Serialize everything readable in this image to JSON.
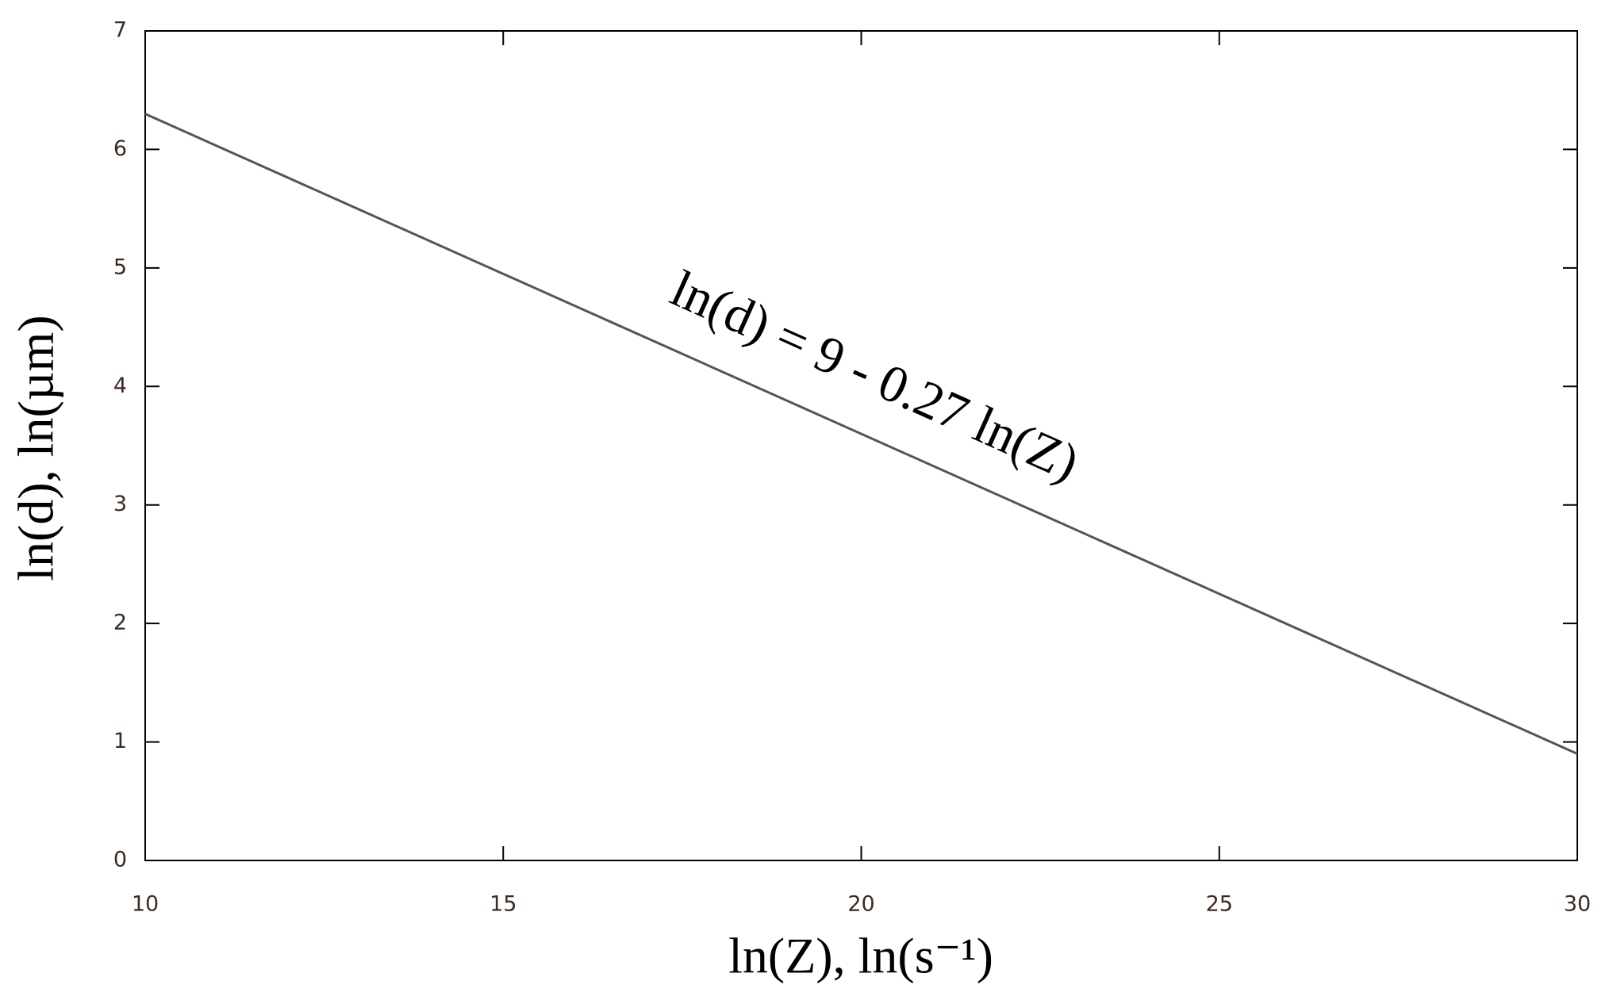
{
  "chart_data": {
    "type": "line",
    "x_label": "ln(Z), ln(s⁻¹)",
    "y_label": "ln(d), ln(µm)",
    "annotation": "ln(d) = 9 - 0.27 ln(Z)",
    "x": [
      10,
      30
    ],
    "series": [
      {
        "color": "#555555",
        "values": [
          6.3,
          0.9
        ]
      }
    ],
    "xlim": [
      10,
      30
    ],
    "xticks": [
      10,
      15,
      20,
      25,
      30
    ],
    "ylim": [
      0,
      7
    ],
    "yticks": [
      0,
      1,
      2,
      3,
      4,
      5,
      6,
      7
    ],
    "grid": false
  }
}
